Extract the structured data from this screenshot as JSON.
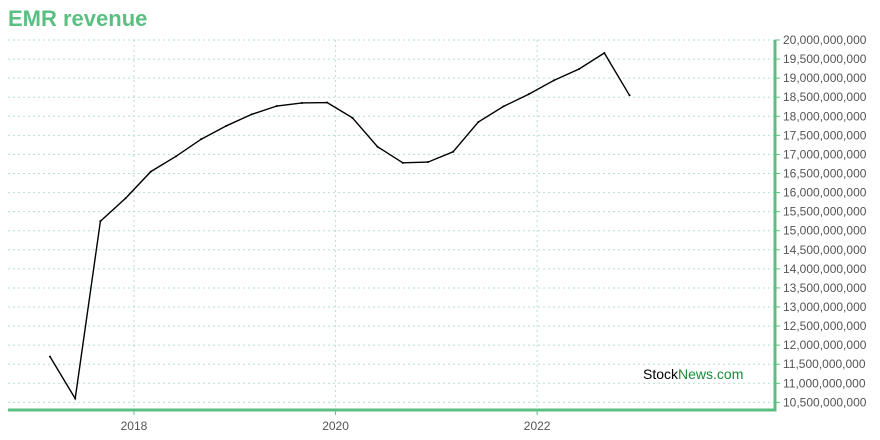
{
  "chart_data": {
    "type": "line",
    "title": "EMR revenue",
    "x_ticks": [
      "2018",
      "2020",
      "2022"
    ],
    "x": [
      "2017-03",
      "2017-06",
      "2017-09",
      "2017-12",
      "2018-03",
      "2018-06",
      "2018-09",
      "2018-12",
      "2019-03",
      "2019-06",
      "2019-09",
      "2019-12",
      "2020-03",
      "2020-06",
      "2020-09",
      "2020-12",
      "2021-03",
      "2021-06",
      "2021-09",
      "2021-12",
      "2022-03",
      "2022-06",
      "2022-09",
      "2022-12"
    ],
    "values": [
      11700000000,
      10600000000,
      15250000000,
      15850000000,
      16550000000,
      16950000000,
      17400000000,
      17750000000,
      18050000000,
      18270000000,
      18350000000,
      18360000000,
      17960000000,
      17200000000,
      16780000000,
      16800000000,
      17070000000,
      17850000000,
      18260000000,
      18580000000,
      18940000000,
      19240000000,
      19660000000,
      18550000000
    ],
    "y_ticks": [
      "10,500,000,000",
      "11,000,000,000",
      "11,500,000,000",
      "12,000,000,000",
      "12,500,000,000",
      "13,000,000,000",
      "13,500,000,000",
      "14,000,000,000",
      "14,500,000,000",
      "15,000,000,000",
      "15,500,000,000",
      "16,000,000,000",
      "16,500,000,000",
      "17,000,000,000",
      "17,500,000,000",
      "18,000,000,000",
      "18,500,000,000",
      "19,000,000,000",
      "19,500,000,000",
      "20,000,000,000"
    ],
    "ylim": [
      10300000000,
      20000000000
    ],
    "grid": true,
    "line_color": "#000000",
    "axis_color": "#5cbf82",
    "grid_color": "#b8ded0"
  },
  "watermark": {
    "part1": "Stock",
    "part2": "News",
    "part3": ".com",
    "color1": "#000000",
    "color2": "#1a8a3a"
  }
}
